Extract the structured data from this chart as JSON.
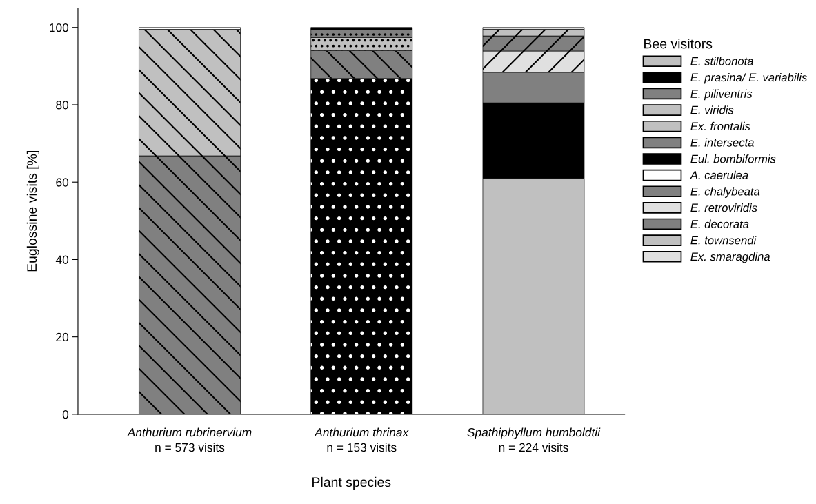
{
  "chart_data": {
    "type": "bar",
    "stacked": true,
    "xlabel": "Plant species",
    "ylabel": "Euglossine visits [%]",
    "legend_title": "Bee visitors",
    "legend": "right",
    "grid": false,
    "categories": [
      "Anthurium rubrinervium\nn = 573 visits",
      "Anthurium thrinax\nn = 153 visits",
      "Spathiphyllum humboldtii\nn = 224 visits"
    ],
    "ylim": [
      0,
      105
    ],
    "yticks": [
      0,
      20,
      40,
      60,
      80,
      100
    ],
    "series": [
      {
        "name": "E. stilbonota",
        "color": "#c0c0c0",
        "values": [
          null,
          null,
          61.0
        ]
      },
      {
        "name": "E. prasina/ E. variabilis",
        "color": "#000000",
        "values": [
          null,
          86.8,
          null
        ]
      },
      {
        "name": "E. piliventris",
        "color": "#808080",
        "values": [
          66.8,
          7.2,
          null
        ]
      },
      {
        "name": "E. viridis",
        "color": "#c0c0c0",
        "values": [
          32.7,
          null,
          null
        ]
      },
      {
        "name": "Ex. frontalis",
        "color": "#c0c0c0",
        "values": [
          null,
          3.4,
          null
        ]
      },
      {
        "name": "E. intersecta",
        "color": "#808080",
        "values": [
          null,
          2.0,
          null
        ]
      },
      {
        "name": "Eul. bombiformis",
        "color": "#000000",
        "values": [
          null,
          0.6,
          19.5
        ]
      },
      {
        "name": "A. caerulea",
        "color": "#ffffff",
        "values": [
          0.5,
          null,
          null
        ]
      },
      {
        "name": "E. chalybeata",
        "color": "#808080",
        "values": [
          null,
          null,
          7.9
        ]
      },
      {
        "name": "E. retroviridis",
        "color": "#e0e0e0",
        "values": [
          null,
          null,
          5.5
        ]
      },
      {
        "name": "E. decorata",
        "color": "#808080",
        "values": [
          null,
          null,
          3.9
        ]
      },
      {
        "name": "E. townsendi",
        "color": "#c0c0c0",
        "values": [
          null,
          null,
          1.7
        ]
      },
      {
        "name": "Ex. smaragdina",
        "color": "#e0e0e0",
        "values": [
          null,
          null,
          0.5
        ]
      }
    ]
  }
}
